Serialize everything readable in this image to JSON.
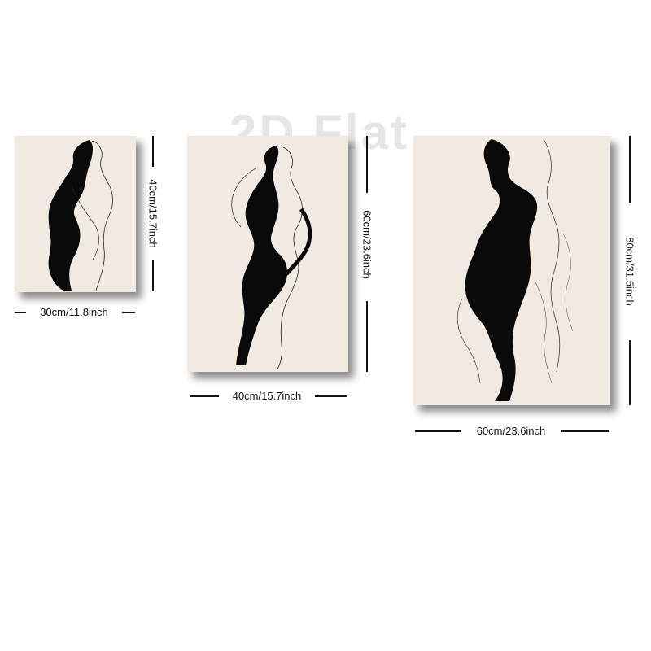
{
  "watermark": "2D Flat",
  "panels": [
    {
      "width_label": "30cm/11.8inch",
      "height_label": "40cm/15.7inch"
    },
    {
      "width_label": "40cm/15.7inch",
      "height_label": "60cm/23.6inch"
    },
    {
      "width_label": "60cm/23.6inch",
      "height_label": "80cm/31.5inch"
    }
  ],
  "colors": {
    "canvas": "#f1eae3",
    "ink": "#0a0a0a",
    "lines": "#111111"
  }
}
